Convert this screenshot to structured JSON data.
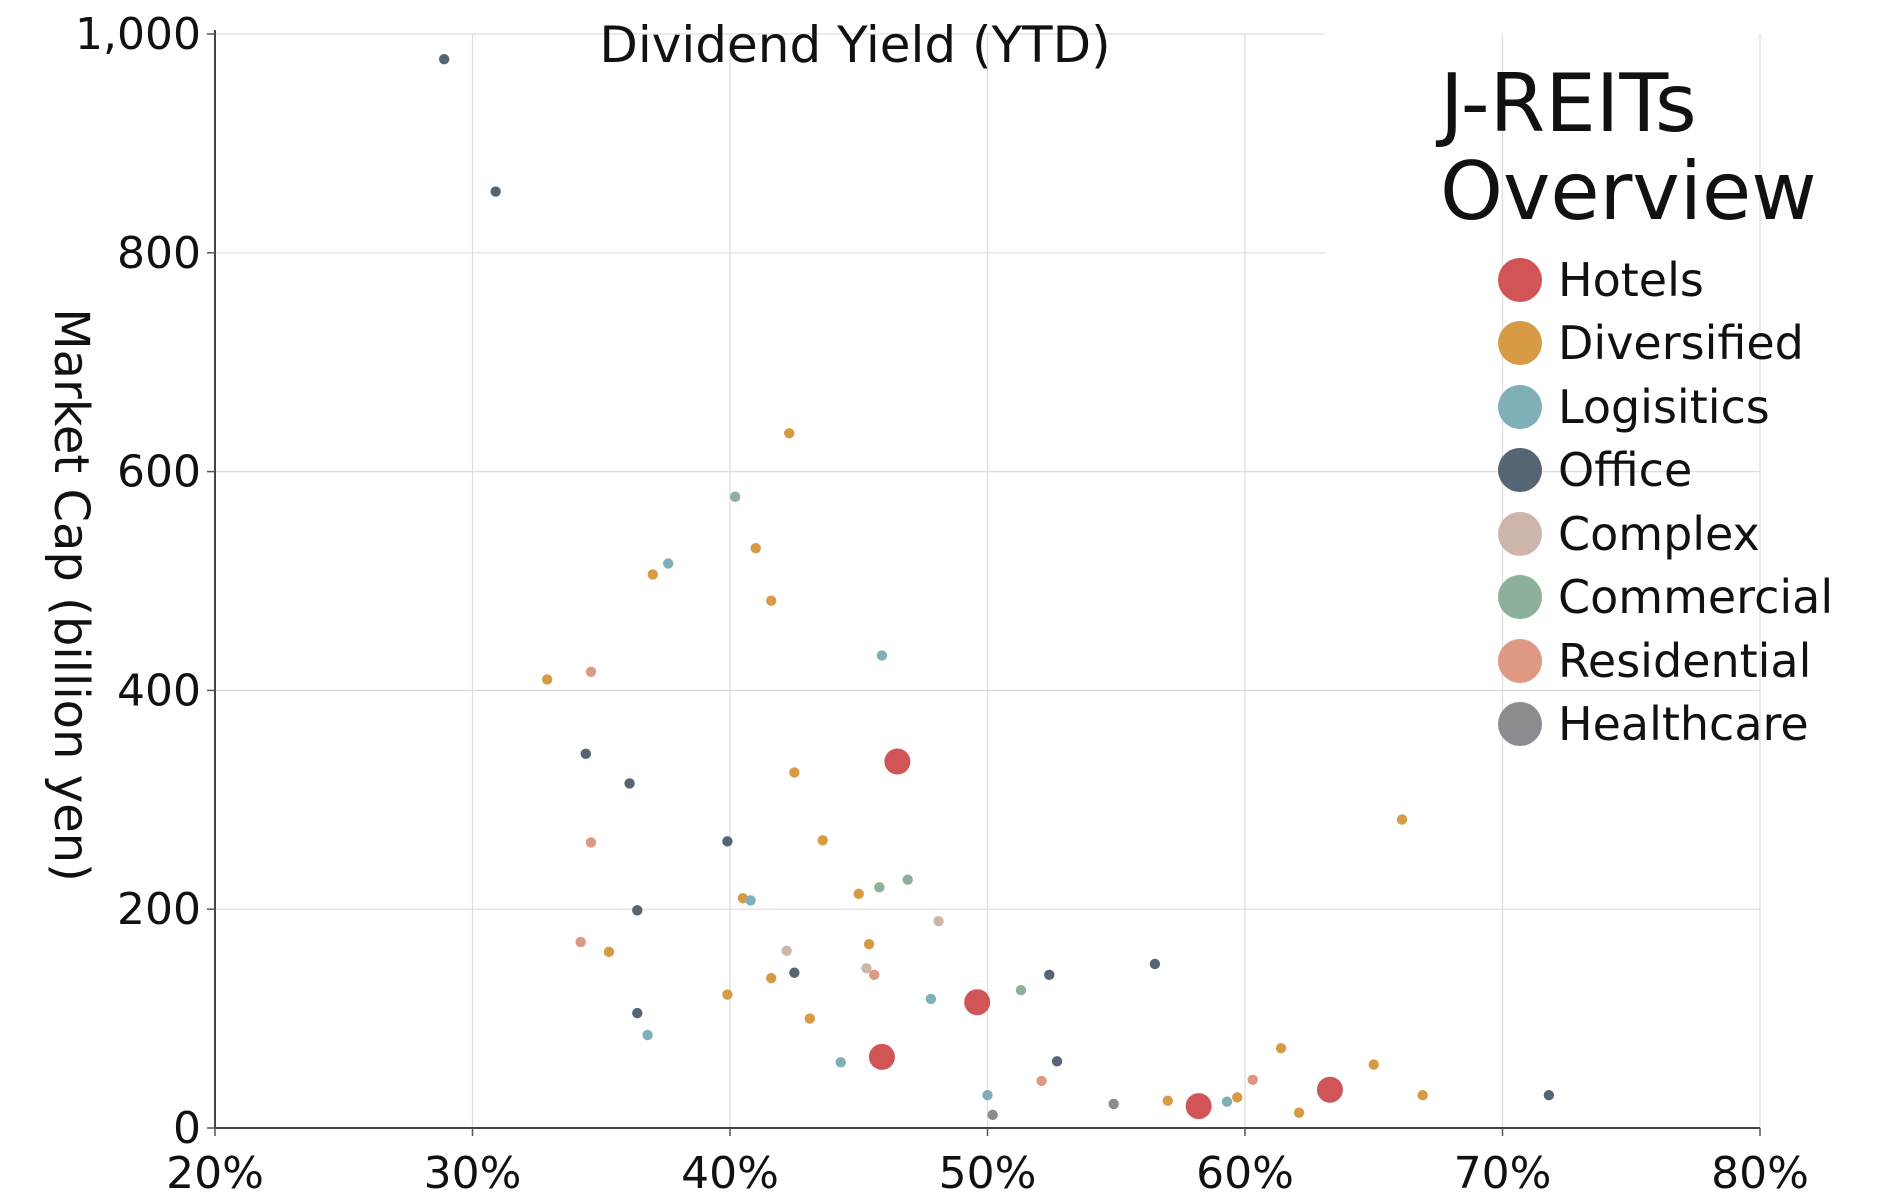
{
  "chart_data": {
    "type": "scatter",
    "title": "Dividend Yield (YTD)",
    "xlabel": "",
    "ylabel": "Market Cap (billion yen)",
    "xlim": [
      20,
      80
    ],
    "ylim": [
      0,
      1000
    ],
    "x_ticks": [
      "20%",
      "30%",
      "40%",
      "50%",
      "60%",
      "70%",
      "80%"
    ],
    "y_ticks": [
      "0",
      "200",
      "400",
      "600",
      "800",
      "1,000"
    ],
    "grid": true,
    "legend_title": "J-REITs Overview",
    "legend_position": "right",
    "series": [
      {
        "name": "Hotels",
        "color": "#D15556",
        "size": "large",
        "points": [
          [
            46.5,
            335
          ],
          [
            49.6,
            115
          ],
          [
            45.9,
            65
          ],
          [
            58.2,
            20
          ],
          [
            63.3,
            35
          ]
        ]
      },
      {
        "name": "Diversified",
        "color": "#D79B45",
        "size": "small",
        "points": [
          [
            42.3,
            635
          ],
          [
            41.0,
            530
          ],
          [
            37.0,
            506
          ],
          [
            41.6,
            482
          ],
          [
            32.9,
            410
          ],
          [
            42.5,
            325
          ],
          [
            43.6,
            263
          ],
          [
            66.1,
            282
          ],
          [
            40.5,
            210
          ],
          [
            45.0,
            214
          ],
          [
            45.4,
            168
          ],
          [
            35.3,
            161
          ],
          [
            41.6,
            137
          ],
          [
            39.9,
            122
          ],
          [
            43.1,
            100
          ],
          [
            61.4,
            73
          ],
          [
            65.0,
            58
          ],
          [
            66.9,
            30
          ],
          [
            59.7,
            28
          ],
          [
            57.0,
            25
          ],
          [
            62.1,
            14
          ]
        ]
      },
      {
        "name": "Logisitics",
        "color": "#7FB0B8",
        "size": "small",
        "points": [
          [
            37.6,
            516
          ],
          [
            45.9,
            432
          ],
          [
            40.8,
            208
          ],
          [
            47.8,
            118
          ],
          [
            36.8,
            85
          ],
          [
            44.3,
            60
          ],
          [
            50.0,
            30
          ],
          [
            59.3,
            24
          ]
        ]
      },
      {
        "name": "Office",
        "color": "#566573",
        "size": "small",
        "points": [
          [
            28.9,
            977
          ],
          [
            30.9,
            856
          ],
          [
            34.4,
            342
          ],
          [
            36.1,
            315
          ],
          [
            39.9,
            262
          ],
          [
            36.4,
            199
          ],
          [
            42.5,
            142
          ],
          [
            56.5,
            150
          ],
          [
            52.4,
            140
          ],
          [
            36.4,
            105
          ],
          [
            52.7,
            61
          ],
          [
            71.8,
            30
          ]
        ]
      },
      {
        "name": "Complex",
        "color": "#CDB5AC",
        "size": "small",
        "points": [
          [
            42.2,
            162
          ],
          [
            45.3,
            146
          ],
          [
            48.1,
            189
          ]
        ]
      },
      {
        "name": "Commercial",
        "color": "#8DB09A",
        "size": "small",
        "points": [
          [
            40.2,
            577
          ],
          [
            46.9,
            227
          ],
          [
            45.8,
            220
          ],
          [
            51.3,
            126
          ]
        ]
      },
      {
        "name": "Residential",
        "color": "#DE9985",
        "size": "small",
        "points": [
          [
            34.6,
            417
          ],
          [
            34.6,
            261
          ],
          [
            34.2,
            170
          ],
          [
            45.6,
            140
          ],
          [
            52.1,
            43
          ],
          [
            60.3,
            44
          ]
        ]
      },
      {
        "name": "Healthcare",
        "color": "#8A8C90",
        "size": "small",
        "points": [
          [
            50.2,
            12
          ],
          [
            54.9,
            22
          ]
        ]
      }
    ]
  }
}
